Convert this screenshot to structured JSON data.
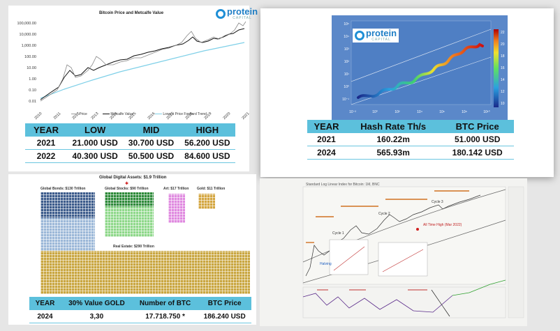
{
  "panel1": {
    "title": "Bitcoin Price and Metcalfe Value",
    "logo": {
      "word": "protein",
      "sub": "CAPITAL"
    },
    "y_ticks": [
      "100,000.00",
      "10,000.00",
      "1,000.00",
      "100.00",
      "10.00",
      "1.00",
      "0.10",
      "0.01"
    ],
    "x_ticks": [
      "2010",
      "2011",
      "2012",
      "2013",
      "2014",
      "2015",
      "2016",
      "2017",
      "2018",
      "2019",
      "2020",
      "2021"
    ],
    "legend": [
      "Price",
      "Metcalfe Value",
      "Lowest Price Forward Trend"
    ],
    "colors": {
      "price": "#999999",
      "metcalfe": "#111111",
      "trend": "#7fd0e8"
    },
    "table": {
      "headers": [
        "YEAR",
        "LOW",
        "MID",
        "HIGH"
      ],
      "rows": [
        [
          "2021",
          "21.000 USD",
          "30.700 USD",
          "56.200 USD"
        ],
        [
          "2022",
          "40.300 USD",
          "50.500 USD",
          "84.600 USD"
        ]
      ]
    }
  },
  "panel2": {
    "logo": {
      "word": "protein",
      "sub": "CAPITAL"
    },
    "y_ticks": [
      "10⁵",
      "10⁴",
      "10³",
      "10²",
      "10¹",
      "10⁰",
      "10⁻¹"
    ],
    "x_ticks": [
      "10⁻²",
      "10⁰",
      "10²",
      "10⁴",
      "10⁶",
      "10⁸",
      "10¹⁰"
    ],
    "colorbar_ticks": [
      "22",
      "20",
      "18",
      "16",
      "14",
      "12",
      "10"
    ],
    "table": {
      "headers": [
        "YEAR",
        "Hash Rate Th/s",
        "BTC Price"
      ],
      "rows": [
        [
          "2021",
          "160.22m",
          "51.000 USD"
        ],
        [
          "2024",
          "565.93m",
          "180.142 USD"
        ]
      ]
    }
  },
  "panel3": {
    "title": "Global Digital Assets: $1.9 Trillion",
    "labels": {
      "bonds": "Global Bonds: $130 Trillion",
      "stocks": "Global Stocks: $90 Trillion",
      "art": "Art: $17 Trillion",
      "gold": "Gold: $11 Trillion",
      "real_estate": "Real Estate: $290 Trillion"
    },
    "colors": {
      "bonds_top": "#3d5c8c",
      "bonds_bottom": "#9cb8d8",
      "stocks_top": "#2e8a3a",
      "stocks_bottom": "#8ed88a",
      "art": "#e08ae0",
      "gold": "#d4a640",
      "real_estate": "#c9a640"
    },
    "table": {
      "headers": [
        "YEAR",
        "30% Value  GOLD",
        "Number of BTC",
        "BTC Price"
      ],
      "rows": [
        [
          "2024",
          "3,30",
          "17.718.750 *",
          "186.240 USD"
        ]
      ]
    }
  },
  "panel4": {
    "title": "Standard Log Linear Index for Bitcoin: 1M, BNC",
    "labels": {
      "cycle3": "Cycle 3",
      "cycle2": "Cycle 2",
      "cycle1": "Cycle 1",
      "halving": "Halving",
      "ath": "All Time High (Mar 2022)"
    }
  }
}
